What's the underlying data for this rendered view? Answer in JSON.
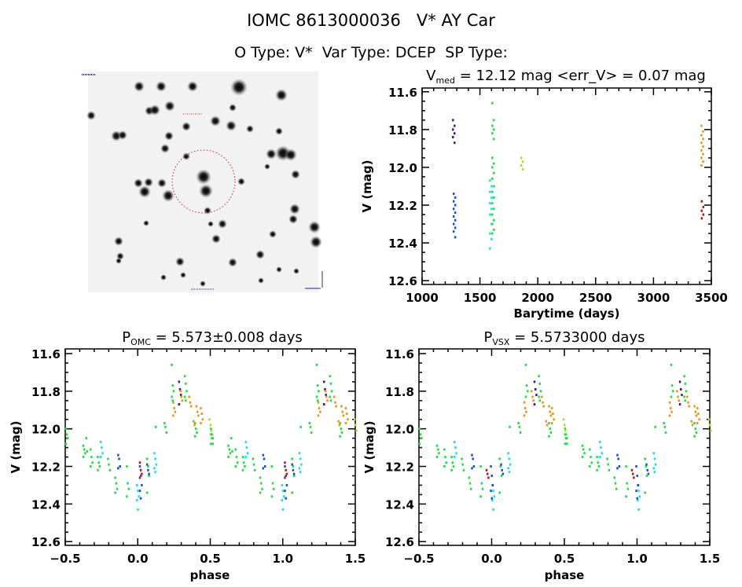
{
  "header": {
    "title": "IOMC 8613000036   V* AY Car",
    "subtitle": "O Type: V*  Var Type: DCEP  SP Type:"
  },
  "colors": {
    "green": "#22dd44",
    "cyan": "#22dddd",
    "blue": "#1a50c8",
    "purple": "#4b0f8c",
    "orange": "#e8961e",
    "yellowgreen": "#aadd22",
    "red": "#cc1111"
  },
  "chart_data": [
    {
      "type": "scatter",
      "title_main": "V",
      "title_sub": "med",
      "title_rest": " = 12.12 mag <err_V> = 0.07 mag",
      "xlabel": "Barytime (days)",
      "ylabel": "V (mag)",
      "xlim": [
        1000,
        3500
      ],
      "ylim": [
        11.58,
        12.62
      ],
      "y_inverted": true,
      "xticks": [
        "1000",
        "1500",
        "2000",
        "2500",
        "3000",
        "3500"
      ],
      "yticks": [
        "11.6",
        "11.8",
        "12.0",
        "12.2",
        "12.4",
        "12.6"
      ],
      "series": [
        {
          "color": "purple",
          "clusters": [
            {
              "x": 1272,
              "v": [
                11.75,
                11.78,
                11.8,
                11.82,
                11.84,
                11.87
              ]
            }
          ]
        },
        {
          "color": "blue",
          "clusters": [
            {
              "x": 1278,
              "v": [
                12.14,
                12.16,
                12.18,
                12.2,
                12.22,
                12.24,
                12.26,
                12.28,
                12.3,
                12.32,
                12.34,
                12.37
              ]
            }
          ]
        },
        {
          "color": "cyan",
          "clusters": [
            {
              "x": 1592,
              "v": [
                12.07,
                12.1,
                12.13,
                12.16,
                12.19,
                12.22,
                12.25,
                12.3,
                12.35,
                12.38,
                12.43
              ]
            }
          ]
        },
        {
          "color": "green",
          "clusters": [
            {
              "x": 1612,
              "v": [
                11.66,
                11.75,
                11.78,
                11.8,
                11.82,
                11.85,
                11.95,
                11.98,
                12.0,
                12.03,
                12.06,
                12.1,
                12.13,
                12.16,
                12.19,
                12.22,
                12.25,
                12.28,
                12.3,
                12.33,
                12.35
              ]
            }
          ]
        },
        {
          "color": "yellowgreen",
          "clusters": [
            {
              "x": 1862,
              "v": [
                11.95,
                11.97,
                11.99,
                12.01
              ]
            }
          ]
        },
        {
          "color": "orange",
          "clusters": [
            {
              "x": 3420,
              "v": [
                11.78,
                11.81,
                11.83,
                11.85,
                11.87,
                11.89,
                11.91,
                11.93,
                11.95,
                11.97,
                11.99
              ]
            }
          ]
        },
        {
          "color": "red",
          "clusters": [
            {
              "x": 3422,
              "v": [
                12.18,
                12.21,
                12.23,
                12.25,
                12.27
              ]
            }
          ]
        }
      ]
    },
    {
      "type": "scatter",
      "title_main": "P",
      "title_sub": "OMC",
      "title_rest": " = 5.573±0.008 days",
      "xlabel": "phase",
      "ylabel": "V (mag)",
      "xlim": [
        -0.5,
        1.5
      ],
      "ylim": [
        11.575,
        12.62
      ],
      "y_inverted": true,
      "xticks": [
        "-0.5",
        "0.0",
        "0.5",
        "1.0",
        "1.5"
      ],
      "yticks": [
        "11.6",
        "11.8",
        "12.0",
        "12.2",
        "12.4",
        "12.6"
      ],
      "series": [
        {
          "color": "green",
          "clusters": [
            {
              "x": -0.49,
              "v": [
                12.0,
                12.03,
                12.05,
                12.08
              ]
            },
            {
              "x": -0.37,
              "v": [
                12.09,
                12.11,
                12.13,
                12.15
              ]
            },
            {
              "x": -0.35,
              "v": [
                12.05,
                12.12
              ]
            },
            {
              "x": -0.32,
              "v": [
                12.11,
                12.15,
                12.18,
                12.2
              ]
            },
            {
              "x": -0.27,
              "v": [
                12.15,
                12.18,
                12.2,
                12.22
              ]
            },
            {
              "x": -0.2,
              "v": [
                12.16,
                12.19,
                12.22
              ]
            },
            {
              "x": -0.15,
              "v": [
                12.26,
                12.29,
                12.32,
                12.34
              ]
            },
            {
              "x": -0.07,
              "v": [
                12.2,
                12.29,
                12.32,
                12.36
              ]
            },
            {
              "x": 0.07,
              "v": [
                12.16,
                12.2,
                12.25,
                12.34
              ]
            },
            {
              "x": 0.13,
              "v": [
                11.99
              ]
            },
            {
              "x": 0.19,
              "v": [
                11.97,
                11.99,
                12.02
              ]
            },
            {
              "x": 0.24,
              "v": [
                11.66,
                11.77,
                11.8,
                11.83,
                11.85
              ]
            },
            {
              "x": 0.33,
              "v": [
                11.72,
                11.76,
                11.8,
                11.83,
                11.85
              ]
            },
            {
              "x": 0.4,
              "v": [
                11.97,
                12.0,
                12.02,
                12.04
              ]
            },
            {
              "x": 0.51,
              "v": [
                12.03,
                12.05,
                12.08
              ]
            }
          ]
        },
        {
          "color": "cyan",
          "clusters": [
            {
              "x": -0.25,
              "v": [
                12.07,
                12.1,
                12.13,
                12.15
              ]
            },
            {
              "x": 0.0,
              "v": [
                12.3,
                12.33,
                12.36,
                12.38,
                12.43
              ]
            },
            {
              "x": 0.12,
              "v": [
                12.13,
                12.16,
                12.19,
                12.21,
                12.23
              ]
            }
          ]
        },
        {
          "color": "blue",
          "clusters": [
            {
              "x": -0.13,
              "v": [
                12.14,
                12.16,
                12.2,
                12.21
              ]
            },
            {
              "x": 0.02,
              "v": [
                12.2,
                12.25,
                12.3,
                12.33,
                12.37
              ]
            },
            {
              "x": 0.07,
              "v": [
                12.19,
                12.22,
                12.24
              ]
            }
          ]
        },
        {
          "color": "purple",
          "clusters": [
            {
              "x": 0.29,
              "v": [
                11.75,
                11.79,
                11.82,
                11.87
              ]
            }
          ]
        },
        {
          "color": "orange",
          "clusters": [
            {
              "x": 0.25,
              "v": [
                11.86,
                11.89,
                11.91,
                11.93
              ]
            },
            {
              "x": 0.3,
              "v": [
                11.8,
                11.83,
                11.85
              ]
            },
            {
              "x": 0.36,
              "v": [
                11.83,
                11.86,
                11.88
              ]
            },
            {
              "x": 0.39,
              "v": [
                11.96,
                11.98
              ]
            },
            {
              "x": 0.41,
              "v": [
                11.88,
                11.91,
                11.93
              ]
            },
            {
              "x": 0.44,
              "v": [
                11.89,
                11.92,
                11.95,
                11.97
              ]
            }
          ]
        },
        {
          "color": "yellowgreen",
          "clusters": [
            {
              "x": 0.5,
              "v": [
                11.95,
                11.98,
                12.01
              ]
            }
          ]
        },
        {
          "color": "red",
          "clusters": [
            {
              "x": 0.02,
              "v": [
                12.18,
                12.22,
                12.24,
                12.26
              ]
            }
          ]
        }
      ]
    },
    {
      "type": "scatter",
      "title_main": "P",
      "title_sub": "VSX",
      "title_rest": " = 5.5733000 days",
      "xlabel": "phase",
      "ylabel": "V (mag)",
      "xlim": [
        -0.5,
        1.5
      ],
      "ylim": [
        11.575,
        12.62
      ],
      "y_inverted": true,
      "xticks": [
        "-0.5",
        "0.0",
        "0.5",
        "1.0",
        "1.5"
      ],
      "yticks": [
        "11.6",
        "11.8",
        "12.0",
        "12.2",
        "12.4",
        "12.6"
      ],
      "series": [
        {
          "color": "green",
          "clusters": [
            {
              "x": -0.49,
              "v": [
                12.0,
                12.03,
                12.05,
                12.08
              ]
            },
            {
              "x": -0.37,
              "v": [
                12.09,
                12.11,
                12.13,
                12.15
              ]
            },
            {
              "x": -0.32,
              "v": [
                12.11,
                12.15,
                12.18,
                12.2
              ]
            },
            {
              "x": -0.27,
              "v": [
                12.15,
                12.18,
                12.2,
                12.22
              ]
            },
            {
              "x": -0.2,
              "v": [
                12.16,
                12.19,
                12.22
              ]
            },
            {
              "x": -0.15,
              "v": [
                12.26,
                12.29,
                12.32
              ]
            },
            {
              "x": -0.07,
              "v": [
                12.2,
                12.29,
                12.32,
                12.36
              ]
            },
            {
              "x": 0.06,
              "v": [
                12.16,
                12.2,
                12.25,
                12.34
              ]
            },
            {
              "x": 0.13,
              "v": [
                11.99
              ]
            },
            {
              "x": 0.19,
              "v": [
                11.97,
                11.99,
                12.02
              ]
            },
            {
              "x": 0.24,
              "v": [
                11.66,
                11.77,
                11.8,
                11.83
              ]
            },
            {
              "x": 0.33,
              "v": [
                11.72,
                11.76,
                11.8,
                11.83,
                11.85
              ]
            },
            {
              "x": 0.4,
              "v": [
                11.97,
                12.0,
                12.02,
                12.04
              ]
            },
            {
              "x": 0.51,
              "v": [
                12.03,
                12.05,
                12.08
              ]
            }
          ]
        },
        {
          "color": "cyan",
          "clusters": [
            {
              "x": -0.25,
              "v": [
                12.07,
                12.1,
                12.13,
                12.15
              ]
            },
            {
              "x": 0.01,
              "v": [
                12.3,
                12.33,
                12.36,
                12.38,
                12.43
              ]
            },
            {
              "x": 0.12,
              "v": [
                12.13,
                12.16,
                12.19,
                12.21,
                12.23
              ]
            }
          ]
        },
        {
          "color": "blue",
          "clusters": [
            {
              "x": -0.13,
              "v": [
                12.14,
                12.16,
                12.2,
                12.21
              ]
            },
            {
              "x": 0.0,
              "v": [
                12.2,
                12.25,
                12.3,
                12.33,
                12.37
              ]
            },
            {
              "x": 0.07,
              "v": [
                12.19,
                12.22,
                12.24
              ]
            }
          ]
        },
        {
          "color": "purple",
          "clusters": [
            {
              "x": 0.3,
              "v": [
                11.75,
                11.79,
                11.82,
                11.87
              ]
            }
          ]
        },
        {
          "color": "orange",
          "clusters": [
            {
              "x": 0.23,
              "v": [
                11.86,
                11.89,
                11.91,
                11.93
              ]
            },
            {
              "x": 0.28,
              "v": [
                11.8,
                11.83,
                11.85
              ]
            },
            {
              "x": 0.35,
              "v": [
                11.83,
                11.86,
                11.88
              ]
            },
            {
              "x": 0.38,
              "v": [
                11.96,
                11.98
              ]
            },
            {
              "x": 0.4,
              "v": [
                11.88,
                11.91,
                11.93
              ]
            },
            {
              "x": 0.42,
              "v": [
                11.89,
                11.92,
                11.95,
                11.97
              ]
            }
          ]
        },
        {
          "color": "yellowgreen",
          "clusters": [
            {
              "x": 0.5,
              "v": [
                11.95,
                11.98,
                12.01
              ]
            }
          ]
        },
        {
          "color": "red",
          "clusters": [
            {
              "x": -0.03,
              "v": [
                12.22,
                12.24,
                12.26
              ]
            }
          ]
        }
      ]
    }
  ]
}
